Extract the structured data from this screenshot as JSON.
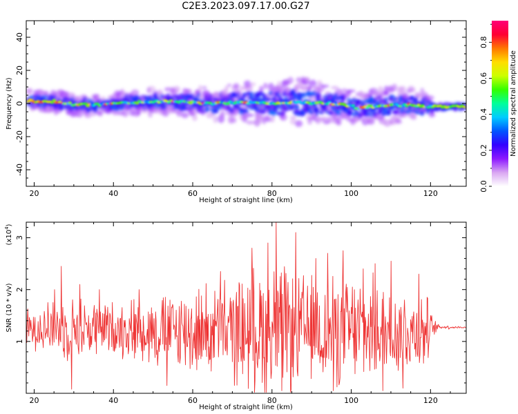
{
  "title": "C2E3.2023.097.17.00.G27",
  "chart_data": [
    {
      "type": "heatmap",
      "name": "spectrogram",
      "xlabel": "Height of straight line (km)",
      "ylabel": "Frequency (Hz)",
      "xlim": [
        18,
        129
      ],
      "ylim": [
        -50,
        50
      ],
      "xticks": [
        20,
        40,
        60,
        80,
        100,
        120
      ],
      "yticks": [
        40,
        20,
        0,
        -20,
        -40
      ],
      "colorbar": {
        "label": "Normalized spectral amplitude",
        "range": [
          0,
          0.92
        ],
        "ticks": [
          0.0,
          0.2,
          0.4,
          0.6,
          0.8
        ],
        "colors": [
          "#ffffff",
          "#d9a6f2",
          "#8c19ff",
          "#3300ff",
          "#0055ff",
          "#00ccff",
          "#00ff99",
          "#33ff00",
          "#ccff00",
          "#ffdd00",
          "#ff7700",
          "#ff0033",
          "#ff0077"
        ]
      },
      "ridge": [
        {
          "x": 18.5,
          "f": 1.5
        },
        {
          "x": 25,
          "f": 1.2
        },
        {
          "x": 30,
          "f": -0.5
        },
        {
          "x": 35,
          "f": -1
        },
        {
          "x": 40,
          "f": 0
        },
        {
          "x": 45,
          "f": 0.8
        },
        {
          "x": 50,
          "f": 1
        },
        {
          "x": 55,
          "f": 1.2
        },
        {
          "x": 60,
          "f": 0.5
        },
        {
          "x": 65,
          "f": 0
        },
        {
          "x": 70,
          "f": 0.6
        },
        {
          "x": 75,
          "f": 0.3
        },
        {
          "x": 80,
          "f": 0
        },
        {
          "x": 85,
          "f": 0.8
        },
        {
          "x": 90,
          "f": 0.4
        },
        {
          "x": 95,
          "f": 0
        },
        {
          "x": 100,
          "f": -1.5
        },
        {
          "x": 102,
          "f": -3
        },
        {
          "x": 105,
          "f": -2
        },
        {
          "x": 110,
          "f": -1
        },
        {
          "x": 115,
          "f": -0.8
        },
        {
          "x": 120,
          "f": -2
        },
        {
          "x": 129,
          "f": -2
        }
      ],
      "spread": [
        {
          "x": 18.5,
          "w": 4
        },
        {
          "x": 40,
          "w": 4
        },
        {
          "x": 55,
          "w": 5
        },
        {
          "x": 70,
          "w": 7
        },
        {
          "x": 80,
          "w": 8
        },
        {
          "x": 90,
          "w": 9
        },
        {
          "x": 100,
          "w": 6
        },
        {
          "x": 110,
          "w": 7
        },
        {
          "x": 118,
          "w": 6
        },
        {
          "x": 121,
          "w": 2.5
        },
        {
          "x": 129,
          "w": 2.5
        }
      ]
    },
    {
      "type": "line",
      "name": "snr",
      "xlabel": "Height of straight line (km)",
      "ylabel": "SNR (10 * v/v)",
      "scale_label": "(x10",
      "scale_exponent": "4",
      "scale_close": ")",
      "xlim": [
        18,
        129
      ],
      "ylim": [
        0,
        3.3
      ],
      "xticks": [
        20,
        40,
        60,
        80,
        100,
        120
      ],
      "yticks": [
        1,
        2,
        3
      ],
      "color": "#ee3333",
      "envelope": [
        {
          "x": 18,
          "mean": 1.25,
          "amp": 0.35
        },
        {
          "x": 30,
          "mean": 1.25,
          "amp": 0.6
        },
        {
          "x": 40,
          "mean": 1.25,
          "amp": 0.5
        },
        {
          "x": 55,
          "mean": 1.2,
          "amp": 0.75
        },
        {
          "x": 70,
          "mean": 1.2,
          "amp": 0.95
        },
        {
          "x": 80,
          "mean": 1.25,
          "amp": 1.3
        },
        {
          "x": 90,
          "mean": 1.2,
          "amp": 1.0
        },
        {
          "x": 100,
          "mean": 1.2,
          "amp": 1.05
        },
        {
          "x": 110,
          "mean": 1.2,
          "amp": 0.9
        },
        {
          "x": 119,
          "mean": 1.2,
          "amp": 0.7
        },
        {
          "x": 120.5,
          "mean": 1.25,
          "amp": 0.2
        },
        {
          "x": 122,
          "mean": 1.28,
          "amp": 0.05
        },
        {
          "x": 129,
          "mean": 1.27,
          "amp": 0.01
        }
      ],
      "peaks": [
        {
          "x": 21.5,
          "y": 1.5
        },
        {
          "x": 23.5,
          "y": 1.75
        },
        {
          "x": 25.2,
          "y": 2.0
        },
        {
          "x": 26.8,
          "y": 2.45
        },
        {
          "x": 29.5,
          "y": 0.08
        },
        {
          "x": 31.5,
          "y": 2.1
        },
        {
          "x": 36.5,
          "y": 2.0
        },
        {
          "x": 46.5,
          "y": 2.0
        },
        {
          "x": 53.5,
          "y": 0.15
        },
        {
          "x": 67.0,
          "y": 2.35
        },
        {
          "x": 75.0,
          "y": 2.8
        },
        {
          "x": 79.0,
          "y": 2.9
        },
        {
          "x": 81.0,
          "y": 3.3
        },
        {
          "x": 82.5,
          "y": 0.05
        },
        {
          "x": 86.0,
          "y": 3.1
        },
        {
          "x": 91.0,
          "y": 2.6
        },
        {
          "x": 94.0,
          "y": 2.7
        },
        {
          "x": 95.5,
          "y": 0.05
        },
        {
          "x": 98.0,
          "y": 2.75
        },
        {
          "x": 103.0,
          "y": 2.4
        },
        {
          "x": 106.0,
          "y": 2.5
        },
        {
          "x": 108.0,
          "y": 0.05
        },
        {
          "x": 110.0,
          "y": 2.55
        },
        {
          "x": 113.0,
          "y": 0.1
        },
        {
          "x": 117.0,
          "y": 2.3
        }
      ]
    }
  ]
}
